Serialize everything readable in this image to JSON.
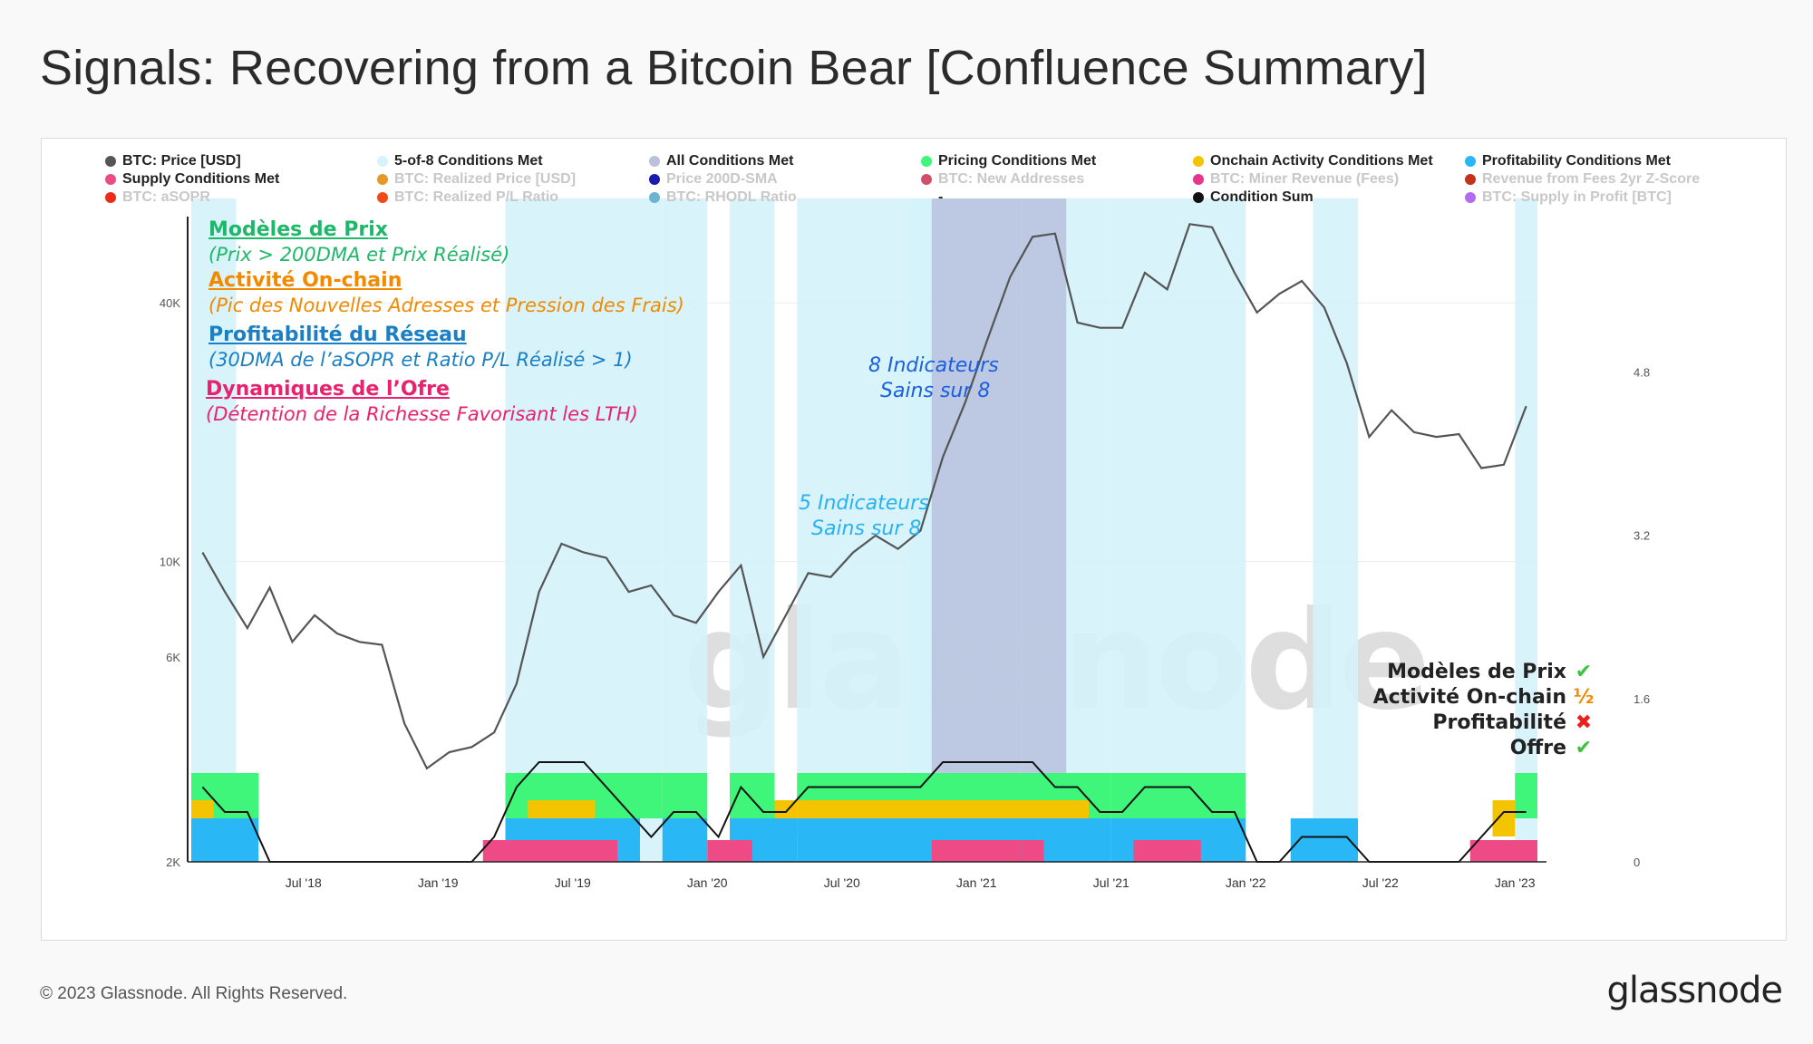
{
  "title": "Signals: Recovering from a Bitcoin Bear [Confluence Summary]",
  "footer": {
    "copyright": "© 2023 Glassnode. All Rights Reserved.",
    "logo": "glassnode"
  },
  "watermark": "glassnode",
  "legend": [
    {
      "label": "BTC: Price [USD]",
      "color": "#555555",
      "active": true
    },
    {
      "label": "5-of-8 Conditions Met",
      "color": "#d4f3fa",
      "active": true
    },
    {
      "label": "All Conditions Met",
      "color": "#b9c1dd",
      "active": true
    },
    {
      "label": "Pricing Conditions Met",
      "color": "#3ff57a",
      "active": true
    },
    {
      "label": "Onchain Activity Conditions Met",
      "color": "#f5c400",
      "active": true
    },
    {
      "label": "Profitability Conditions Met",
      "color": "#2ab7f5",
      "active": true
    },
    {
      "label": "Supply Conditions Met",
      "color": "#ee4a86",
      "active": true
    },
    {
      "label": "BTC: Realized Price [USD]",
      "color": "#e39a2a",
      "active": false
    },
    {
      "label": "Price 200D-SMA",
      "color": "#1b1bb0",
      "active": false
    },
    {
      "label": "BTC: New Addresses",
      "color": "#d0506b",
      "active": false
    },
    {
      "label": "BTC: Miner Revenue (Fees)",
      "color": "#e8348a",
      "active": false
    },
    {
      "label": "Revenue from Fees 2yr Z-Score",
      "color": "#c2341a",
      "active": false
    },
    {
      "label": "BTC: aSOPR",
      "color": "#ee2a1a",
      "active": false
    },
    {
      "label": "BTC: Realized P/L Ratio",
      "color": "#f04a1a",
      "active": false
    },
    {
      "label": "BTC: RHODL Ratio",
      "color": "#6ab3d3",
      "active": false
    },
    {
      "label": "-",
      "color": "",
      "active": true
    },
    {
      "label": "Condition Sum",
      "color": "#111111",
      "active": true
    },
    {
      "label": "BTC: Supply in Profit [BTC]",
      "color": "#b36cf0",
      "active": false
    }
  ],
  "annotations": {
    "pricing_head": "Modèles de Prix",
    "pricing_sub": "(Prix > 200DMA et Prix Réalisé)",
    "onchain_head": "Activité On-chain",
    "onchain_sub": "(Pic des Nouvelles Adresses et Pression des Frais)",
    "profit_head": "Profitabilité du Réseau",
    "profit_sub": "(30DMA de l’aSOPR et Ratio P/L Réalisé > 1)",
    "supply_head": "Dynamiques de l’Ofre",
    "supply_sub": "(Détention de la Richesse Favorisant les LTH)",
    "eight_l1": "8 Indicateurs",
    "eight_l2": "Sains sur 8",
    "five_l1": "5 Indicateurs",
    "five_l2": "Sains sur 8",
    "colors": {
      "pricing": "#1fb86a",
      "onchain": "#f28a00",
      "profit": "#1a7fc4",
      "supply": "#e8226f",
      "blue_note": "#1a5fe0",
      "light_note": "#2ab1f0"
    }
  },
  "status": [
    {
      "label": "Modèles de Prix",
      "mark": "✔",
      "mark_color": "#3cc23c"
    },
    {
      "label": "Activité On-chain",
      "mark": "½",
      "mark_color": "#f28a00"
    },
    {
      "label": "Profitabilité",
      "mark": "✖",
      "mark_color": "#e82020"
    },
    {
      "label": "Offre",
      "mark": "✔",
      "mark_color": "#3cc23c"
    }
  ],
  "chart_data": {
    "type": "line",
    "x_ticks": [
      "Jul '18",
      "Jan '19",
      "Jul '19",
      "Jan '20",
      "Jul '20",
      "Jan '21",
      "Jul '21",
      "Jan '22",
      "Jul '22",
      "Jan '23"
    ],
    "y_left": {
      "scale": "log",
      "ticks": [
        "2K",
        "6K",
        "10K",
        "40K"
      ],
      "tick_values": [
        2000,
        6000,
        10000,
        40000
      ],
      "range": [
        2000,
        70000
      ]
    },
    "y_right": {
      "ticks": [
        "0",
        "1.6",
        "3.2",
        "4.8"
      ],
      "tick_values": [
        0,
        1.6,
        3.2,
        4.8
      ],
      "range": [
        0,
        6.5
      ]
    },
    "price_series": {
      "name": "BTC: Price [USD]",
      "x": [
        "2018-02",
        "2018-03",
        "2018-04",
        "2018-05",
        "2018-06",
        "2018-07",
        "2018-08",
        "2018-09",
        "2018-10",
        "2018-11",
        "2018-12",
        "2019-01",
        "2019-02",
        "2019-03",
        "2019-04",
        "2019-05",
        "2019-06",
        "2019-07",
        "2019-08",
        "2019-09",
        "2019-10",
        "2019-11",
        "2019-12",
        "2020-01",
        "2020-02",
        "2020-03",
        "2020-04",
        "2020-05",
        "2020-06",
        "2020-07",
        "2020-08",
        "2020-09",
        "2020-10",
        "2020-11",
        "2020-12",
        "2021-01",
        "2021-02",
        "2021-03",
        "2021-04",
        "2021-05",
        "2021-06",
        "2021-07",
        "2021-08",
        "2021-09",
        "2021-10",
        "2021-11",
        "2021-12",
        "2022-01",
        "2022-02",
        "2022-03",
        "2022-04",
        "2022-05",
        "2022-06",
        "2022-07",
        "2022-08",
        "2022-09",
        "2022-10",
        "2022-11",
        "2022-12",
        "2023-01"
      ],
      "y": [
        10500,
        8500,
        7000,
        8700,
        6500,
        7500,
        6800,
        6500,
        6400,
        4200,
        3300,
        3600,
        3700,
        4000,
        5200,
        8500,
        11000,
        10500,
        10200,
        8500,
        8800,
        7500,
        7200,
        8500,
        9800,
        6000,
        7500,
        9400,
        9200,
        10500,
        11500,
        10700,
        11800,
        17500,
        23500,
        33000,
        46000,
        57000,
        58000,
        36000,
        35000,
        35000,
        47000,
        43000,
        61000,
        60000,
        47000,
        38000,
        42000,
        45000,
        39000,
        29000,
        19500,
        22500,
        20000,
        19500,
        19800,
        16500,
        16800,
        23000
      ]
    },
    "condition_sum_range": [
      0,
      8
    ],
    "bands": [
      {
        "name": "5-of-8 Conditions Met",
        "periods": [
          [
            "2018-02",
            "2018-03"
          ],
          [
            "2019-04",
            "2019-10"
          ],
          [
            "2019-11",
            "2019-12"
          ],
          [
            "2020-02",
            "2020-03"
          ],
          [
            "2020-05",
            "2020-10"
          ],
          [
            "2020-10",
            "2021-06"
          ],
          [
            "2021-07",
            "2021-12"
          ],
          [
            "2022-04",
            "2022-05"
          ],
          [
            "2023-01",
            "2023-01"
          ]
        ]
      },
      {
        "name": "All Conditions Met",
        "periods": [
          [
            "2020-11",
            "2021-02"
          ],
          [
            "2021-03",
            "2021-04"
          ]
        ]
      },
      {
        "name": "Pricing Conditions Met",
        "periods": [
          [
            "2018-02",
            "2018-04"
          ],
          [
            "2019-04",
            "2019-10"
          ],
          [
            "2019-11",
            "2019-12"
          ],
          [
            "2020-02",
            "2020-03"
          ],
          [
            "2020-05",
            "2021-06"
          ],
          [
            "2021-07",
            "2021-12"
          ],
          [
            "2023-01",
            "2023-01"
          ]
        ]
      },
      {
        "name": "Onchain Activity Conditions Met",
        "periods": [
          [
            "2018-02",
            "2018-02"
          ],
          [
            "2019-05",
            "2019-07"
          ],
          [
            "2020-04",
            "2020-04"
          ],
          [
            "2020-05",
            "2021-05"
          ],
          [
            "2022-12",
            "2022-12"
          ]
        ]
      },
      {
        "name": "Profitability Conditions Met",
        "periods": [
          [
            "2018-02",
            "2018-04"
          ],
          [
            "2019-04",
            "2019-09"
          ],
          [
            "2019-11",
            "2019-12"
          ],
          [
            "2020-02",
            "2020-04"
          ],
          [
            "2020-05",
            "2021-06"
          ],
          [
            "2021-07",
            "2021-12"
          ],
          [
            "2022-03",
            "2022-05"
          ]
        ]
      },
      {
        "name": "Supply Conditions Met",
        "periods": [
          [
            "2019-03",
            "2019-08"
          ],
          [
            "2020-01",
            "2020-02"
          ],
          [
            "2020-11",
            "2021-02"
          ],
          [
            "2021-03",
            "2021-03"
          ],
          [
            "2021-08",
            "2021-10"
          ],
          [
            "2022-11",
            "2023-01"
          ]
        ]
      }
    ]
  }
}
